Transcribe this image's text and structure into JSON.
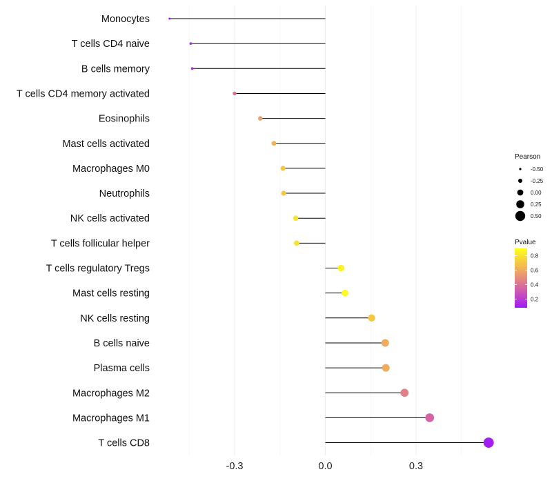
{
  "chart_data": {
    "type": "lollipop",
    "title": "",
    "xlabel": "",
    "ylabel": "",
    "xlim": [
      -0.52,
      0.55
    ],
    "x_ticks": [
      {
        "value": -0.3,
        "label": "-0.3"
      },
      {
        "value": 0.0,
        "label": "0.0"
      },
      {
        "value": 0.3,
        "label": "0.3"
      }
    ],
    "grid": true,
    "baseline": 0.0,
    "points": [
      {
        "cell": "Monocytes",
        "pearson": -0.515,
        "pvalue": 0.02
      },
      {
        "cell": "T cells CD4 naive",
        "pearson": -0.445,
        "pvalue": 0.15
      },
      {
        "cell": "B cells memory",
        "pearson": -0.44,
        "pvalue": 0.15
      },
      {
        "cell": "T cells CD4 memory activated",
        "pearson": -0.3,
        "pvalue": 0.4
      },
      {
        "cell": "Eosinophils",
        "pearson": -0.215,
        "pvalue": 0.55
      },
      {
        "cell": "Mast cells activated",
        "pearson": -0.17,
        "pvalue": 0.62
      },
      {
        "cell": "Macrophages M0",
        "pearson": -0.14,
        "pvalue": 0.7
      },
      {
        "cell": "Neutrophils",
        "pearson": -0.138,
        "pvalue": 0.7
      },
      {
        "cell": "NK cells activated",
        "pearson": -0.098,
        "pvalue": 0.8
      },
      {
        "cell": "T cells follicular helper",
        "pearson": -0.095,
        "pvalue": 0.8
      },
      {
        "cell": "T cells regulatory  Tregs",
        "pearson": 0.052,
        "pvalue": 0.85
      },
      {
        "cell": "Mast cells resting",
        "pearson": 0.065,
        "pvalue": 0.88
      },
      {
        "cell": "NK cells resting",
        "pearson": 0.153,
        "pvalue": 0.7
      },
      {
        "cell": "B cells naive",
        "pearson": 0.198,
        "pvalue": 0.6
      },
      {
        "cell": "Plasma cells",
        "pearson": 0.2,
        "pvalue": 0.6
      },
      {
        "cell": "Macrophages M2",
        "pearson": 0.262,
        "pvalue": 0.45
      },
      {
        "cell": "Macrophages M1",
        "pearson": 0.345,
        "pvalue": 0.35
      },
      {
        "cell": "T cells CD8",
        "pearson": 0.54,
        "pvalue": 0.1
      }
    ],
    "legend_size": {
      "title": "Pearson",
      "entries": [
        {
          "value": -0.5,
          "label": "-0.50"
        },
        {
          "value": -0.25,
          "label": "-0.25"
        },
        {
          "value": 0.0,
          "label": "0.00"
        },
        {
          "value": 0.25,
          "label": "0.25"
        },
        {
          "value": 0.5,
          "label": "0.50"
        }
      ]
    },
    "legend_color": {
      "title": "Pvalue",
      "range": [
        0.08,
        0.9
      ],
      "ticks": [
        {
          "value": 0.8,
          "label": "0.8"
        },
        {
          "value": 0.6,
          "label": "0.6"
        },
        {
          "value": 0.4,
          "label": "0.4"
        },
        {
          "value": 0.2,
          "label": "0.2"
        }
      ],
      "palette": [
        "#9d19f5",
        "#c448c6",
        "#dc7494",
        "#eda468",
        "#f6d13c",
        "#ffff1a"
      ]
    },
    "legend_position": "right",
    "line_color": "#000000",
    "grid_color": "#ececec"
  }
}
